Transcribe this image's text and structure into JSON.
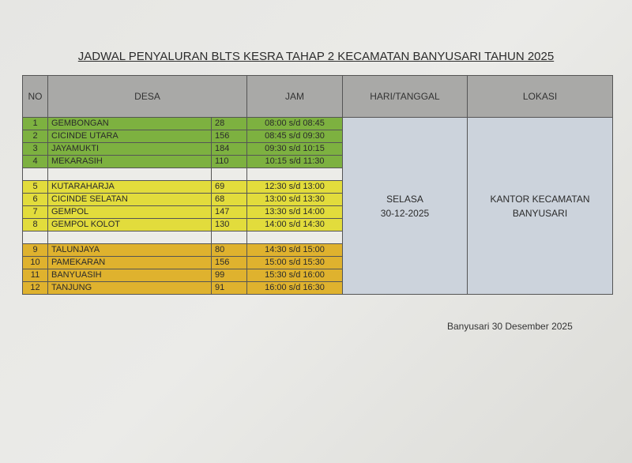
{
  "title": "JADWAL PENYALURAN BLTS KESRA  TAHAP 2 KECAMATAN BANYUSARI TAHUN 2025",
  "headers": {
    "no": "NO",
    "desa": "DESA",
    "jam": "JAM",
    "hari": "HARI/TANGGAL",
    "lokasi": "LOKASI"
  },
  "group_colors": {
    "g1": "#7db140",
    "g2": "#e2dc3c",
    "g3": "#dfb22e"
  },
  "groups": [
    {
      "color": "g1",
      "rows": [
        {
          "no": "1",
          "desa": "GEMBONGAN",
          "count": "28",
          "jam": "08:00 s/d 08:45"
        },
        {
          "no": "2",
          "desa": "CICINDE UTARA",
          "count": "156",
          "jam": "08:45 s/d 09:30"
        },
        {
          "no": "3",
          "desa": "JAYAMUKTI",
          "count": "184",
          "jam": "09:30 s/d 10:15"
        },
        {
          "no": "4",
          "desa": "MEKARASIH",
          "count": "110",
          "jam": "10:15 s/d 11:30"
        }
      ]
    },
    {
      "color": "g2",
      "rows": [
        {
          "no": "5",
          "desa": "KUTARAHARJA",
          "count": "69",
          "jam": "12:30 s/d 13:00"
        },
        {
          "no": "6",
          "desa": "CICINDE SELATAN",
          "count": "68",
          "jam": "13:00 s/d 13:30"
        },
        {
          "no": "7",
          "desa": "GEMPOL",
          "count": "147",
          "jam": "13:30 s/d 14:00"
        },
        {
          "no": "8",
          "desa": "GEMPOL KOLOT",
          "count": "130",
          "jam": "14:00 s/d 14:30"
        }
      ]
    },
    {
      "color": "g3",
      "rows": [
        {
          "no": "9",
          "desa": "TALUNJAYA",
          "count": "80",
          "jam": "14:30 s/d 15:00"
        },
        {
          "no": "10",
          "desa": "PAMEKARAN",
          "count": "156",
          "jam": "15:00 s/d 15:30"
        },
        {
          "no": "11",
          "desa": "BANYUASIH",
          "count": "99",
          "jam": "15:30 s/d 16:00"
        },
        {
          "no": "12",
          "desa": "TANJUNG",
          "count": "91",
          "jam": "16:00 s/d 16:30"
        }
      ]
    }
  ],
  "hari": {
    "day": "SELASA",
    "date": "30-12-2025"
  },
  "lokasi": {
    "line1": "KANTOR KECAMATAN",
    "line2": "BANYUSARI"
  },
  "footer": "Banyusari 30 Desember 2025"
}
